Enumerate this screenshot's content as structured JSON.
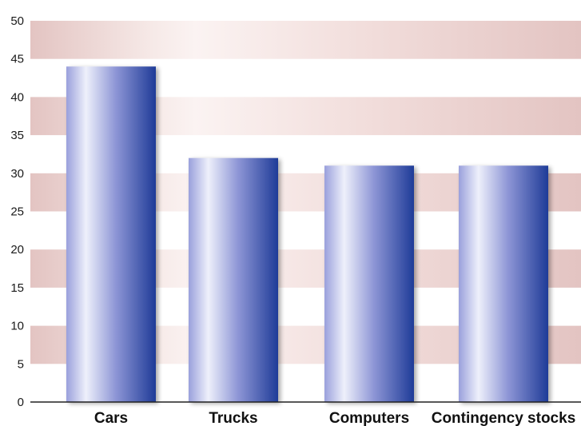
{
  "chart_data": {
    "type": "bar",
    "title": "",
    "xlabel": "",
    "ylabel": "",
    "categories": [
      "Cars",
      "Trucks",
      "Computers",
      "Contingency stocks"
    ],
    "values": [
      44,
      32,
      31,
      31
    ],
    "ylim": [
      0,
      50
    ],
    "yticks": [
      0,
      5,
      10,
      15,
      20,
      25,
      30,
      35,
      40,
      45,
      50
    ],
    "grid": "alternating horizontal bands",
    "legend": "none",
    "colors": {
      "bar_light": "#eef0fb",
      "bar_mid": "#8e96d6",
      "bar_dark": "#1f3c98",
      "band_strong": "#e3c4c2",
      "band_light": "#f6e9e7",
      "axis": "#222222"
    }
  }
}
